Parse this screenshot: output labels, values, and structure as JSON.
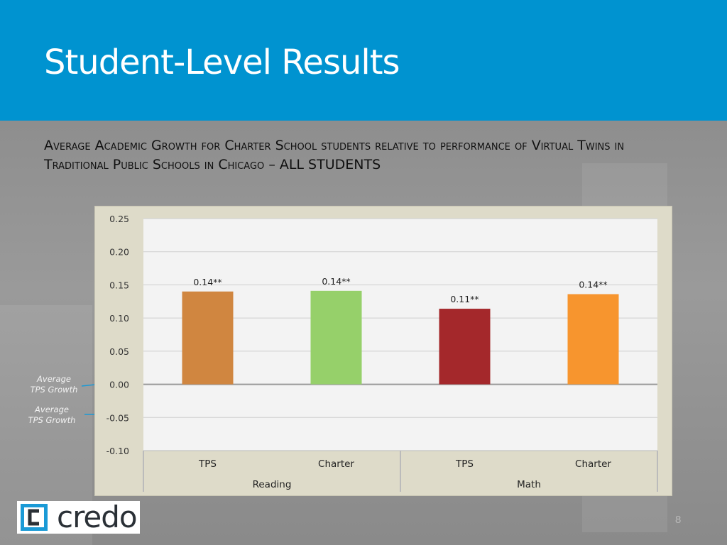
{
  "header": {
    "title": "Student-Level Results"
  },
  "subtitle": "Average Academic Growth for Charter School students relative to performance of Virtual Twins in Traditional Public Schools in Chicago – ALL STUDENTS",
  "annotations": [
    {
      "line1": "Average",
      "line2": "TPS Growth",
      "arrow_color": "#1a9ad6"
    },
    {
      "line1": "Average",
      "line2": "TPS Growth",
      "arrow_color": "#1a9ad6"
    }
  ],
  "logo": {
    "text": "credo"
  },
  "page_number": "8",
  "chart_data": {
    "type": "bar",
    "ylim": [
      -0.1,
      0.25
    ],
    "yticks": [
      "0.25",
      "0.20",
      "0.15",
      "0.10",
      "0.05",
      "0.00",
      "-0.05",
      "-0.10"
    ],
    "grid": true,
    "bars": [
      {
        "category": "TPS",
        "group": "Reading",
        "value": 0.14,
        "label": "0.14**",
        "color": "#d08640"
      },
      {
        "category": "Charter",
        "group": "Reading",
        "value": 0.141,
        "label": "0.14**",
        "color": "#96d06a"
      },
      {
        "category": "TPS",
        "group": "Math",
        "value": 0.114,
        "label": "0.11**",
        "color": "#a4282b"
      },
      {
        "category": "Charter",
        "group": "Math",
        "value": 0.136,
        "label": "0.14**",
        "color": "#f7952e"
      }
    ],
    "groups": [
      "Reading",
      "Math"
    ]
  }
}
